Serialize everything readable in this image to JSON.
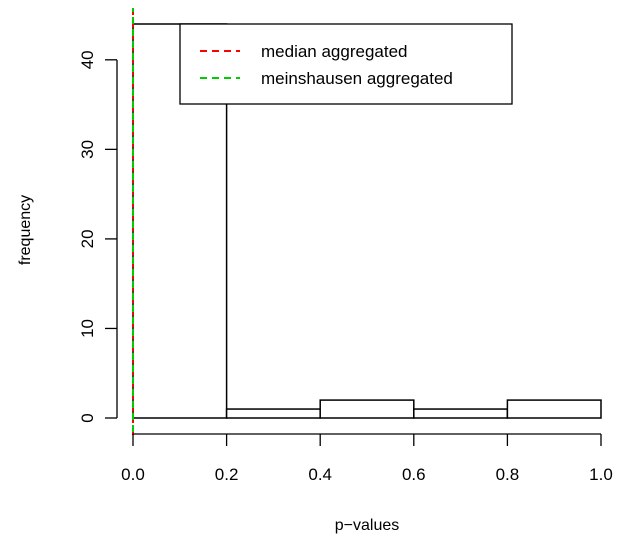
{
  "chart_data": {
    "type": "bar",
    "subtype": "histogram",
    "title": "",
    "xlabel": "p−values",
    "ylabel": "frequency",
    "bins": [
      {
        "from": 0.0,
        "to": 0.2,
        "count": 44
      },
      {
        "from": 0.2,
        "to": 0.4,
        "count": 1
      },
      {
        "from": 0.4,
        "to": 0.6,
        "count": 2
      },
      {
        "from": 0.6,
        "to": 0.8,
        "count": 1
      },
      {
        "from": 0.8,
        "to": 1.0,
        "count": 2
      }
    ],
    "xlim": [
      0,
      1
    ],
    "ylim": [
      0,
      44
    ],
    "xticks": [
      0.0,
      0.2,
      0.4,
      0.6,
      0.8,
      1.0
    ],
    "xtick_labels": [
      "0.0",
      "0.2",
      "0.4",
      "0.6",
      "0.8",
      "1.0"
    ],
    "yticks": [
      0,
      10,
      20,
      30,
      40
    ],
    "ytick_labels": [
      "0",
      "10",
      "20",
      "30",
      "40"
    ],
    "grid": false,
    "bar_fill": "#ffffff",
    "bar_stroke": "#000000",
    "vlines": [
      {
        "name": "median aggregated",
        "x": 0.0,
        "color": "#ff0000",
        "style": "dashed"
      },
      {
        "name": "meinshausen aggregated",
        "x": 0.0,
        "color": "#00cc00",
        "style": "dashed"
      }
    ],
    "legend": {
      "position": "top",
      "entries": [
        {
          "label": "median aggregated",
          "color": "#ff0000"
        },
        {
          "label": "meinshausen aggregated",
          "color": "#00cc00"
        }
      ]
    }
  }
}
